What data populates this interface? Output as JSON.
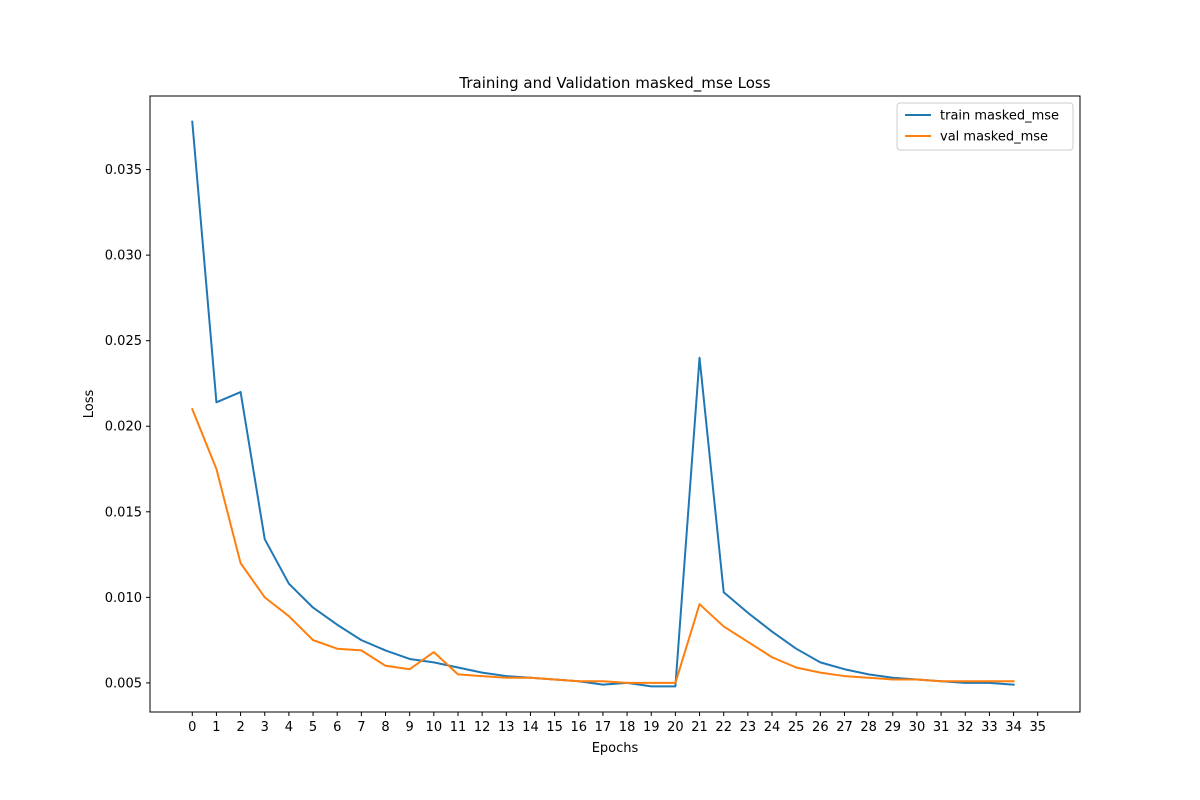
{
  "chart_data": {
    "type": "line",
    "title": "Training and Validation masked_mse Loss",
    "xlabel": "Epochs",
    "ylabel": "Loss",
    "x": [
      0,
      1,
      2,
      3,
      4,
      5,
      6,
      7,
      8,
      9,
      10,
      11,
      12,
      13,
      14,
      15,
      16,
      17,
      18,
      19,
      20,
      21,
      22,
      23,
      24,
      25,
      26,
      27,
      28,
      29,
      30,
      31,
      32,
      33,
      34
    ],
    "xticks": [
      0,
      1,
      2,
      3,
      4,
      5,
      6,
      7,
      8,
      9,
      10,
      11,
      12,
      13,
      14,
      15,
      16,
      17,
      18,
      19,
      20,
      21,
      22,
      23,
      24,
      25,
      26,
      27,
      28,
      29,
      30,
      31,
      32,
      33,
      34,
      35
    ],
    "xlim": [
      -1.75,
      36.75
    ],
    "yticks": [
      0.005,
      0.01,
      0.015,
      0.02,
      0.025,
      0.03,
      0.035
    ],
    "ytick_labels": [
      "0.005",
      "0.010",
      "0.015",
      "0.020",
      "0.025",
      "0.030",
      "0.035"
    ],
    "ylim": [
      0.0033,
      0.0393
    ],
    "grid": false,
    "legend_position": "top-right",
    "series": [
      {
        "name": "train masked_mse",
        "color": "#1f77b4",
        "values": [
          0.0378,
          0.0214,
          0.022,
          0.0134,
          0.0108,
          0.0094,
          0.0084,
          0.0075,
          0.0069,
          0.0064,
          0.0062,
          0.0059,
          0.0056,
          0.0054,
          0.0053,
          0.0052,
          0.0051,
          0.0049,
          0.005,
          0.0048,
          0.0048,
          0.024,
          0.0103,
          0.0091,
          0.008,
          0.007,
          0.0062,
          0.0058,
          0.0055,
          0.0053,
          0.0052,
          0.0051,
          0.005,
          0.005,
          0.0049
        ]
      },
      {
        "name": "val masked_mse",
        "color": "#ff7f0e",
        "values": [
          0.021,
          0.0175,
          0.012,
          0.01,
          0.0089,
          0.0075,
          0.007,
          0.0069,
          0.006,
          0.0058,
          0.0068,
          0.0055,
          0.0054,
          0.0053,
          0.0053,
          0.0052,
          0.0051,
          0.0051,
          0.005,
          0.005,
          0.005,
          0.0096,
          0.0083,
          0.0074,
          0.0065,
          0.0059,
          0.0056,
          0.0054,
          0.0053,
          0.0052,
          0.0052,
          0.0051,
          0.0051,
          0.0051,
          0.0051
        ]
      }
    ]
  }
}
